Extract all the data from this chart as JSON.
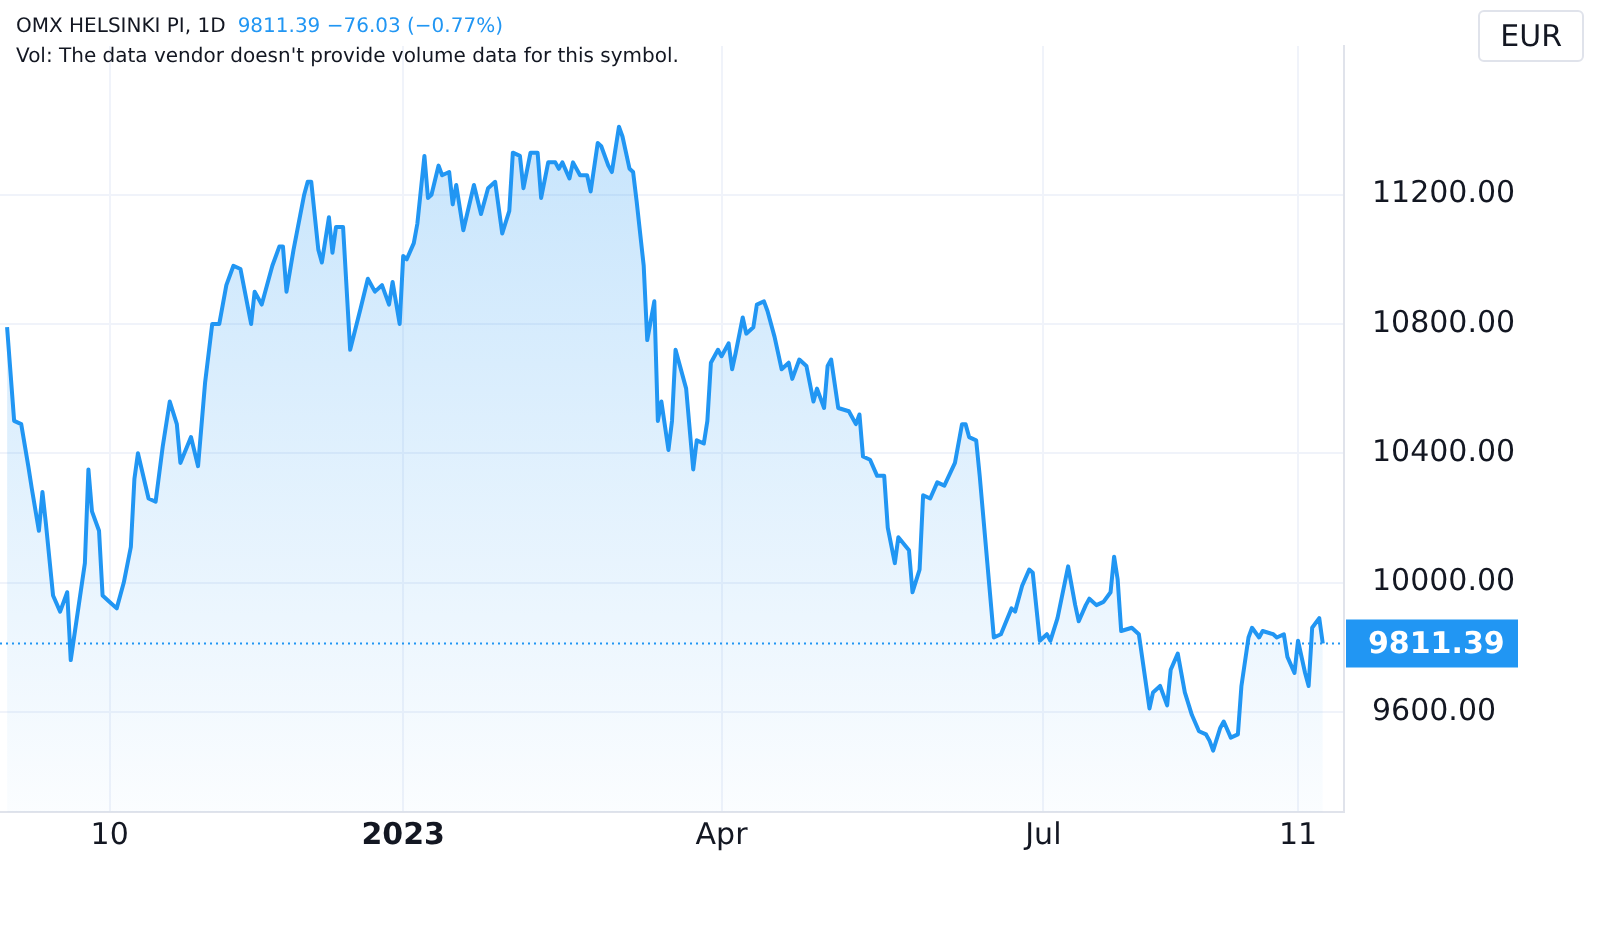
{
  "chart_data": {
    "type": "area",
    "title": "OMX HELSINKI PI, 1D",
    "subtitle": "9811.39 −76.03 (−0.77%)",
    "ylabel": "EUR",
    "annotations": [
      "Vol: The data vendor doesn't provide volume data for this symbol."
    ],
    "color": "#2196f3",
    "x": [
      "2022-09-11",
      "2022-09-13",
      "2022-09-15",
      "2022-09-17",
      "2022-09-18",
      "2022-09-20",
      "2022-09-21",
      "2022-09-22",
      "2022-09-24",
      "2022-09-26",
      "2022-09-28",
      "2022-09-29",
      "2022-10-03",
      "2022-10-04",
      "2022-10-05",
      "2022-10-07",
      "2022-10-08",
      "2022-10-10",
      "2022-10-12",
      "2022-10-14",
      "2022-10-16",
      "2022-10-17",
      "2022-10-18",
      "2022-10-21",
      "2022-10-23",
      "2022-10-25",
      "2022-10-27",
      "2022-10-29",
      "2022-10-30",
      "2022-11-02",
      "2022-11-04",
      "2022-11-06",
      "2022-11-08",
      "2022-11-10",
      "2022-11-12",
      "2022-11-14",
      "2022-11-16",
      "2022-11-19",
      "2022-11-20",
      "2022-11-22",
      "2022-11-25",
      "2022-11-27",
      "2022-11-28",
      "2022-11-29",
      "2022-12-01",
      "2022-12-04",
      "2022-12-05",
      "2022-12-06",
      "2022-12-08",
      "2022-12-09",
      "2022-12-11",
      "2022-12-12",
      "2022-12-13",
      "2022-12-15",
      "2022-12-17",
      "2022-12-20",
      "2022-12-22",
      "2022-12-24",
      "2022-12-26",
      "2022-12-28",
      "2022-12-29",
      "2022-12-31",
      "2023-01-01",
      "2023-01-02",
      "2023-01-04",
      "2023-01-05",
      "2023-01-07",
      "2023-01-08",
      "2023-01-09",
      "2023-01-11",
      "2023-01-12",
      "2023-01-14",
      "2023-01-15",
      "2023-01-16",
      "2023-01-18",
      "2023-01-21",
      "2023-01-23",
      "2023-01-25",
      "2023-01-27",
      "2023-01-29",
      "2023-01-31",
      "2023-02-01",
      "2023-02-03",
      "2023-02-04",
      "2023-02-06",
      "2023-02-08",
      "2023-02-09",
      "2023-02-11",
      "2023-02-13",
      "2023-02-14",
      "2023-02-15",
      "2023-02-17",
      "2023-02-18",
      "2023-02-20",
      "2023-02-22",
      "2023-02-23",
      "2023-02-25",
      "2023-02-26",
      "2023-02-28",
      "2023-03-01",
      "2023-03-03",
      "2023-03-04",
      "2023-03-06",
      "2023-03-07",
      "2023-03-08",
      "2023-03-10",
      "2023-03-11",
      "2023-03-13",
      "2023-03-14",
      "2023-03-15",
      "2023-03-17",
      "2023-03-18",
      "2023-03-19",
      "2023-03-22",
      "2023-03-24",
      "2023-03-25",
      "2023-03-27",
      "2023-03-28",
      "2023-03-29",
      "2023-03-31",
      "2023-04-01",
      "2023-04-03",
      "2023-04-04",
      "2023-04-05",
      "2023-04-07",
      "2023-04-08",
      "2023-04-10",
      "2023-04-11",
      "2023-04-13",
      "2023-04-14",
      "2023-04-16",
      "2023-04-18",
      "2023-04-20",
      "2023-04-21",
      "2023-04-23",
      "2023-04-25",
      "2023-04-27",
      "2023-04-28",
      "2023-04-30",
      "2023-05-01",
      "2023-05-02",
      "2023-05-04",
      "2023-05-07",
      "2023-05-09",
      "2023-05-10",
      "2023-05-11",
      "2023-05-13",
      "2023-05-15",
      "2023-05-17",
      "2023-05-18",
      "2023-05-20",
      "2023-05-21",
      "2023-05-24",
      "2023-05-25",
      "2023-05-27",
      "2023-05-28",
      "2023-05-30",
      "2023-06-01",
      "2023-06-03",
      "2023-06-06",
      "2023-06-08",
      "2023-06-09",
      "2023-06-10",
      "2023-06-12",
      "2023-06-13",
      "2023-06-17",
      "2023-06-19",
      "2023-06-22",
      "2023-06-23",
      "2023-06-25",
      "2023-06-27",
      "2023-06-28",
      "2023-06-30",
      "2023-07-02",
      "2023-07-03",
      "2023-07-05",
      "2023-07-08",
      "2023-07-10",
      "2023-07-11",
      "2023-07-13",
      "2023-07-14",
      "2023-07-16",
      "2023-07-18",
      "2023-07-20",
      "2023-07-21",
      "2023-07-22",
      "2023-07-23",
      "2023-07-26",
      "2023-07-28",
      "2023-07-31",
      "2023-08-01",
      "2023-08-03",
      "2023-08-05",
      "2023-08-06",
      "2023-08-08",
      "2023-08-10",
      "2023-08-12",
      "2023-08-14",
      "2023-08-16",
      "2023-08-17",
      "2023-08-18",
      "2023-08-20",
      "2023-08-21",
      "2023-08-23",
      "2023-08-25",
      "2023-08-26",
      "2023-08-28",
      "2023-08-29",
      "2023-08-31",
      "2023-09-01",
      "2023-09-04",
      "2023-09-05",
      "2023-09-07",
      "2023-09-08",
      "2023-09-10",
      "2023-09-11",
      "2023-09-13",
      "2023-09-14",
      "2023-09-15",
      "2023-09-17",
      "2023-09-18"
    ],
    "values": [
      10790,
      10500,
      10490,
      10360,
      10290,
      10160,
      10280,
      10180,
      9960,
      9910,
      9970,
      9760,
      10060,
      10350,
      10220,
      10160,
      9960,
      9940,
      9920,
      10000,
      10110,
      10320,
      10400,
      10260,
      10250,
      10420,
      10560,
      10490,
      10370,
      10450,
      10360,
      10620,
      10800,
      10800,
      10920,
      10980,
      10970,
      10800,
      10900,
      10860,
      10980,
      11040,
      11040,
      10900,
      11030,
      11200,
      11240,
      11240,
      11030,
      10990,
      11130,
      11020,
      11100,
      11100,
      10720,
      10850,
      10940,
      10900,
      10920,
      10860,
      10930,
      10800,
      11010,
      11000,
      11050,
      11110,
      11320,
      11190,
      11200,
      11290,
      11260,
      11270,
      11170,
      11230,
      11090,
      11230,
      11140,
      11220,
      11240,
      11080,
      11150,
      11330,
      11320,
      11220,
      11330,
      11330,
      11190,
      11300,
      11300,
      11280,
      11300,
      11250,
      11300,
      11260,
      11260,
      11210,
      11360,
      11350,
      11290,
      11270,
      11410,
      11380,
      11280,
      11270,
      11180,
      10980,
      10750,
      10870,
      10500,
      10560,
      10410,
      10500,
      10720,
      10600,
      10350,
      10440,
      10430,
      10500,
      10680,
      10720,
      10700,
      10740,
      10660,
      10710,
      10820,
      10770,
      10790,
      10860,
      10870,
      10840,
      10760,
      10660,
      10680,
      10630,
      10690,
      10670,
      10560,
      10600,
      10540,
      10670,
      10690,
      10540,
      10530,
      10490,
      10520,
      10390,
      10380,
      10330,
      10330,
      10170,
      10060,
      10140,
      10100,
      9970,
      10040,
      10270,
      10260,
      10310,
      10300,
      10370,
      10490,
      10490,
      10450,
      10440,
      10330,
      9830,
      9840,
      9920,
      9910,
      9990,
      10040,
      10030,
      9820,
      9840,
      9820,
      9890,
      10050,
      9930,
      9880,
      9930,
      9950,
      9930,
      9940,
      9970,
      10080,
      10010,
      9850,
      9860,
      9840,
      9610,
      9660,
      9680,
      9620,
      9730,
      9780,
      9660,
      9590,
      9540,
      9530,
      9510,
      9480,
      9550,
      9570,
      9520,
      9530,
      9680,
      9830,
      9860,
      9830,
      9850,
      9840,
      9830,
      9840,
      9770,
      9720,
      9820,
      9720,
      9680,
      9860,
      9890,
      9811.39
    ],
    "xlim": [
      "2022-09-09",
      "2023-09-24"
    ],
    "xticks": [
      {
        "value": "2022-10-10",
        "label": "10"
      },
      {
        "value": "2023-01-01",
        "label": "2023"
      },
      {
        "value": "2023-04-01",
        "label": "Apr"
      },
      {
        "value": "2023-07-01",
        "label": "Jul"
      },
      {
        "value": "2023-09-11",
        "label": "11"
      }
    ],
    "ylim": [
      9290,
      11660
    ],
    "yticks": [
      {
        "value": 9600,
        "label": "9600.00"
      },
      {
        "value": 10000,
        "label": "10000.00"
      },
      {
        "value": 10400,
        "label": "10400.00"
      },
      {
        "value": 10800,
        "label": "10800.00"
      },
      {
        "value": 11200,
        "label": "11200.00"
      }
    ],
    "grid": true,
    "ref_lines": [
      {
        "axis": "y",
        "value": 9811.39,
        "label": "9811.39",
        "color": "#2196f3",
        "line_style": "dotted"
      }
    ]
  }
}
